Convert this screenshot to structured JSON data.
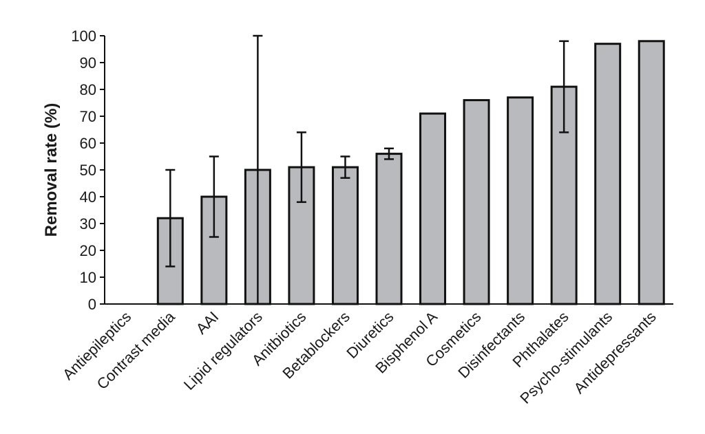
{
  "chart_data": {
    "type": "bar",
    "title": "",
    "xlabel": "",
    "ylabel": "Removal rate (%)",
    "ylim": [
      0,
      100
    ],
    "yticks": [
      "0",
      "10",
      "20",
      "30",
      "40",
      "50",
      "60",
      "70",
      "80",
      "90",
      "100"
    ],
    "grid": false,
    "legend": "none",
    "bar_color": "#b9babd",
    "bar_edge_color": "#111111",
    "categories": [
      "Antiepileptics",
      "Contrast media",
      "AAI",
      "Lipid regulators",
      "Anitbiotics",
      "Betablockers",
      "Diuretics",
      "Bisphenol A",
      "Cosmetics",
      "Disinfectants",
      "Phthalates",
      "Psycho-stimulants",
      "Antidepressants"
    ],
    "values": [
      0,
      32,
      40,
      50,
      51,
      51,
      56,
      71,
      76,
      77,
      81,
      97,
      98
    ],
    "error_low": [
      null,
      14,
      25,
      0,
      38,
      47,
      54,
      null,
      null,
      null,
      64,
      null,
      null
    ],
    "error_high": [
      null,
      50,
      55,
      100,
      64,
      55,
      58,
      null,
      null,
      null,
      98,
      null,
      null
    ]
  }
}
